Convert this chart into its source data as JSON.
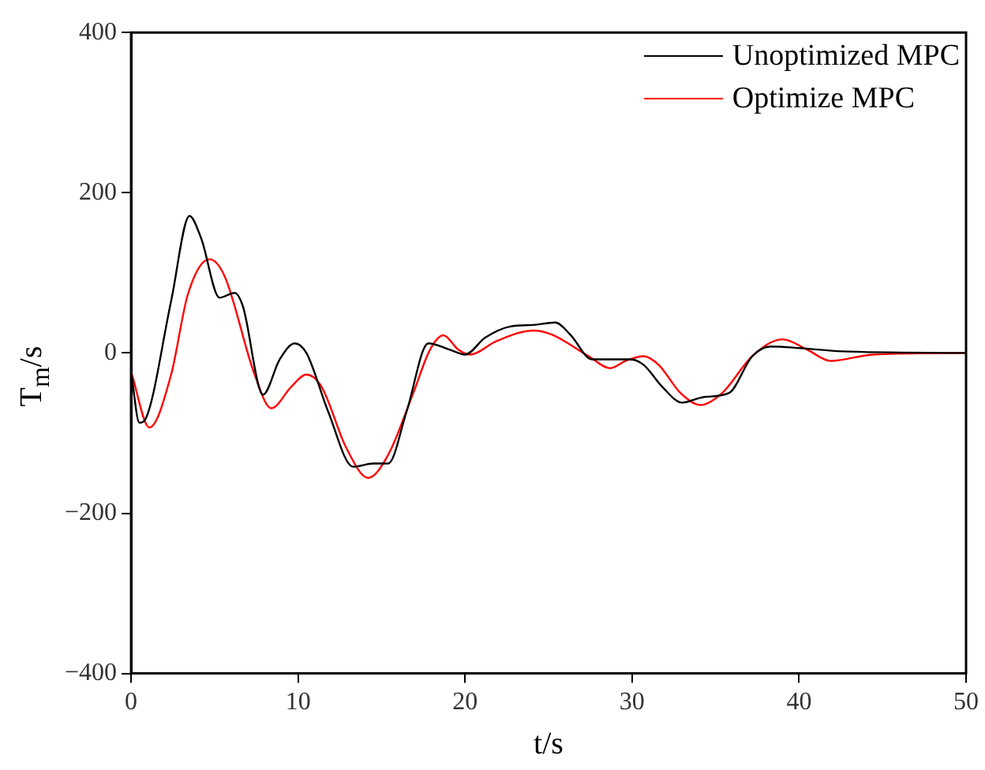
{
  "chart_data": {
    "type": "line",
    "xlabel": "t/s",
    "ylabel": "T$_{m}$/s",
    "xlim": [
      0,
      50
    ],
    "ylim": [
      -400,
      400
    ],
    "xticks": [
      0,
      10,
      20,
      30,
      40,
      50
    ],
    "yticks": [
      -400,
      -200,
      0,
      200,
      400
    ],
    "grid": false,
    "legend": "top right",
    "marker": "none",
    "line_style": "solid",
    "series": [
      {
        "name": "Unoptimized MPC",
        "color": "#000000",
        "x": [
          0,
          0.5,
          0.9,
          2.4,
          3.5,
          4.2,
          5.3,
          6.2,
          6.7,
          7.9,
          8.9,
          9.8,
          10.5,
          11.8,
          13.3,
          14.5,
          15.4,
          16.5,
          17.8,
          19.1,
          20,
          21.2,
          22.7,
          24.1,
          25.4,
          26.3,
          27.6,
          29.9,
          30.7,
          31.8,
          33,
          34.3,
          35.8,
          37.2,
          38.3,
          40.1,
          42.6,
          50
        ],
        "values": [
          -23,
          -87,
          -81,
          65,
          171,
          143,
          69,
          75,
          58,
          -52,
          -8,
          12,
          0,
          -73,
          -142,
          -138,
          -138,
          -73,
          12,
          4,
          -2,
          19,
          33,
          35,
          38,
          23,
          -8,
          -8,
          -15,
          -42,
          -62,
          -55,
          -50,
          -4,
          8,
          6,
          2,
          0
        ]
      },
      {
        "name": "Optimize MPC",
        "color": "#ff0000",
        "x": [
          0,
          1.1,
          2.4,
          3.4,
          4.7,
          5.6,
          7.4,
          8.4,
          9.6,
          10.5,
          11.4,
          12.9,
          14.2,
          15.4,
          16.9,
          17.9,
          18.7,
          19.6,
          20.3,
          21.9,
          24.1,
          25.2,
          27.4,
          28.7,
          29.6,
          30.7,
          31.6,
          32.9,
          34.1,
          35.4,
          37.2,
          39,
          40.5,
          41.9,
          44.4,
          50
        ],
        "values": [
          -23,
          -93,
          -27,
          73,
          117,
          96,
          -27,
          -69,
          -42,
          -27,
          -42,
          -119,
          -156,
          -127,
          -50,
          4,
          22,
          4,
          -2,
          15,
          28,
          23,
          -4,
          -19,
          -10,
          -4,
          -15,
          -50,
          -65,
          -50,
          -4,
          17,
          4,
          -10,
          -2,
          0
        ]
      }
    ]
  }
}
